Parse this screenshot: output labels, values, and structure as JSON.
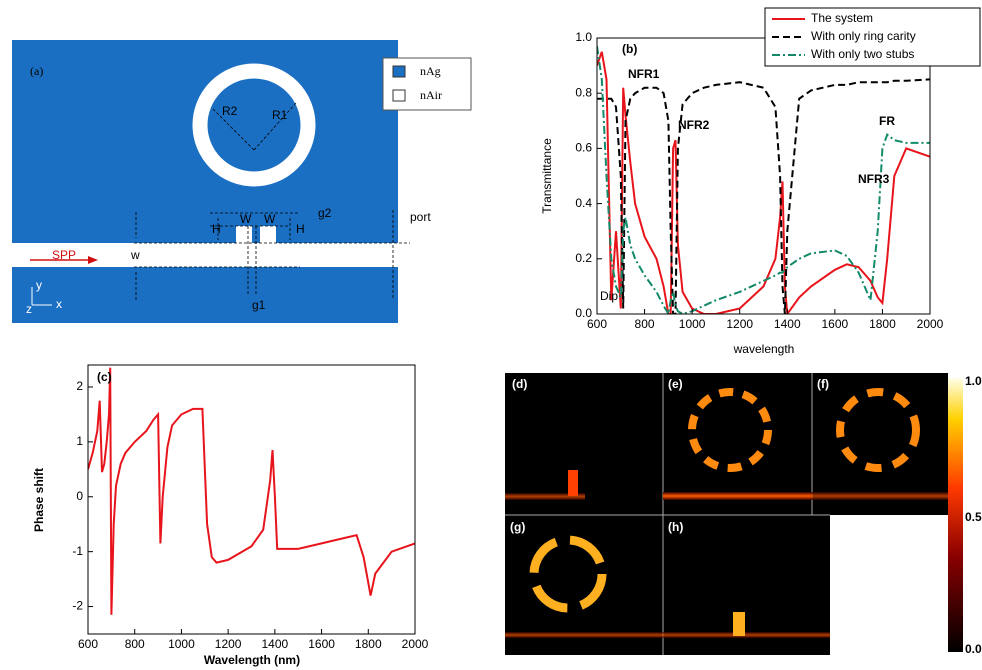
{
  "chart_data": [
    {
      "type": "line",
      "label": "(b)",
      "x_label": "wavelength",
      "y_label": "Transmittance",
      "xlim": [
        600,
        2000
      ],
      "ylim": [
        0,
        1
      ],
      "xticks": [
        600,
        800,
        1000,
        1200,
        1400,
        1600,
        1800,
        2000
      ],
      "yticks": [
        {
          "value": 0,
          "label": "0.0"
        },
        0.2,
        0.4,
        0.6,
        0.8,
        {
          "value": 1,
          "label": "1.0"
        }
      ],
      "legend": "upper right",
      "annotations": [
        "NFR1",
        "NFR2",
        "NFR3",
        "FR",
        "Dip"
      ],
      "x": [
        600,
        620,
        640,
        660,
        680,
        700,
        710,
        720,
        740,
        760,
        800,
        850,
        880,
        900,
        910,
        920,
        930,
        940,
        960,
        1000,
        1050,
        1100,
        1200,
        1300,
        1350,
        1370,
        1380,
        1390,
        1400,
        1450,
        1500,
        1600,
        1650,
        1700,
        1750,
        1780,
        1800,
        1820,
        1850,
        1900,
        2000
      ],
      "series": [
        {
          "name": "The system",
          "color": "#e8141b",
          "style": "solid",
          "values": [
            0.9,
            0.95,
            0.85,
            0.05,
            0.3,
            0.02,
            0.82,
            0.72,
            0.55,
            0.4,
            0.28,
            0.2,
            0.1,
            0,
            0,
            0.6,
            0.63,
            0.25,
            0.08,
            0.02,
            0,
            0,
            0.02,
            0.1,
            0.2,
            0.35,
            0.48,
            0.1,
            0,
            0.06,
            0.1,
            0.16,
            0.18,
            0.17,
            0.12,
            0.06,
            0.04,
            0.2,
            0.5,
            0.6,
            0.57
          ]
        },
        {
          "name": "With only ring carity",
          "color": "#000000",
          "style": "dashed",
          "values": [
            0.78,
            0.78,
            0.78,
            0.78,
            0.75,
            0.5,
            0.02,
            0.7,
            0.78,
            0.8,
            0.82,
            0.82,
            0.8,
            0.7,
            0.3,
            0,
            0,
            0.6,
            0.76,
            0.8,
            0.82,
            0.83,
            0.84,
            0.82,
            0.75,
            0.5,
            0.1,
            0,
            0.3,
            0.78,
            0.81,
            0.83,
            0.83,
            0.84,
            0.84,
            0.84,
            0.84,
            0.84,
            0.845,
            0.845,
            0.85
          ]
        },
        {
          "name": "With only two stubs",
          "color": "#138a6a",
          "style": "dashdot",
          "values": [
            0.97,
            0.85,
            0.5,
            0.2,
            0.1,
            0.06,
            0.3,
            0.35,
            0.25,
            0.2,
            0.14,
            0.08,
            0.03,
            0,
            0.05,
            0.08,
            0.03,
            0.01,
            0,
            0.01,
            0.03,
            0.05,
            0.08,
            0.12,
            0.14,
            0.15,
            0.15,
            0.16,
            0.17,
            0.2,
            0.22,
            0.23,
            0.21,
            0.15,
            0.05,
            0.3,
            0.6,
            0.65,
            0.63,
            0.62,
            0.62
          ]
        }
      ]
    },
    {
      "type": "line",
      "label": "(c)",
      "x_label": "Wavelength (nm)",
      "y_label": "Phase shift",
      "xlim": [
        600,
        2000
      ],
      "ylim": [
        -2.5,
        2.4
      ],
      "xticks": [
        600,
        800,
        1000,
        1200,
        1400,
        1600,
        1800,
        2000
      ],
      "yticks": [
        -2,
        -1,
        0,
        1,
        2
      ],
      "annotations": [],
      "x": [
        600,
        620,
        640,
        650,
        660,
        670,
        680,
        690,
        695,
        700,
        710,
        720,
        740,
        760,
        800,
        850,
        880,
        900,
        910,
        920,
        940,
        960,
        1000,
        1050,
        1090,
        1110,
        1130,
        1150,
        1200,
        1300,
        1350,
        1380,
        1390,
        1400,
        1410,
        1500,
        1600,
        1700,
        1750,
        1780,
        1810,
        1830,
        1900,
        2000
      ],
      "series": [
        {
          "name": null,
          "color": "#e8141b",
          "style": "solid",
          "values": [
            0.5,
            0.8,
            1.2,
            1.75,
            0.45,
            0.6,
            1.0,
            1.5,
            2.35,
            -2.15,
            -0.5,
            0.2,
            0.6,
            0.8,
            1.0,
            1.2,
            1.4,
            1.5,
            -0.85,
            0,
            0.9,
            1.3,
            1.5,
            1.6,
            1.6,
            -0.5,
            -1.1,
            -1.2,
            -1.15,
            -0.9,
            -0.6,
            0.3,
            0.85,
            0,
            -0.95,
            -0.95,
            -0.85,
            -0.75,
            -0.7,
            -1.1,
            -1.8,
            -1.4,
            -1.0,
            -0.85
          ]
        }
      ]
    }
  ],
  "schematic": {
    "label": "(a)",
    "legend": [
      "nAg",
      "nAir"
    ],
    "R2": "R2",
    "R1": "R1",
    "g2": "g2",
    "W1": "W",
    "W2": "W",
    "H1": "H",
    "H2": "H",
    "w": "w",
    "SPP": "SPP",
    "port": "port",
    "g1": "g1",
    "y": "y",
    "x": "x",
    "z": "z"
  },
  "field_maps": {
    "labels": [
      "(d)",
      "(e)",
      "(f)",
      "(g)",
      "(h)"
    ],
    "colorbar_ticks": [
      "1.0",
      "0.5",
      "0.0"
    ]
  }
}
